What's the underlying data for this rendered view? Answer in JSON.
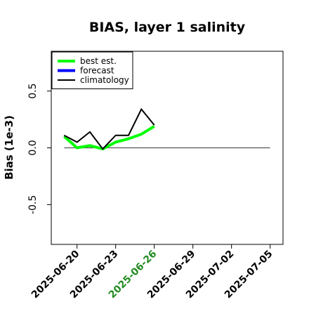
{
  "chart_data": {
    "type": "line",
    "title": "BIAS, layer 1 salinity",
    "xlabel": "",
    "ylabel": "Bias (1e-3)",
    "xlim": [
      "2025-06-18",
      "2025-07-06"
    ],
    "ylim": [
      -0.85,
      0.85
    ],
    "yticks": [
      -0.5,
      0.0,
      0.5
    ],
    "ytick_labels": [
      "-0.5",
      "0.0",
      "0.5"
    ],
    "xticks": [
      "2025-06-20",
      "2025-06-23",
      "2025-06-26",
      "2025-06-29",
      "2025-07-02",
      "2025-07-05"
    ],
    "xtick_colors": [
      "#000000",
      "#000000",
      "#228B22",
      "#000000",
      "#000000",
      "#000000"
    ],
    "zero_line": {
      "y": 0,
      "x_start": "2025-06-19",
      "x_end": "2025-07-05",
      "color": "#555555"
    },
    "grid": false,
    "legend_position": "top-left",
    "series": [
      {
        "name": "best est.",
        "color": "#00ff00",
        "width": 4,
        "x": [
          "2025-06-19",
          "2025-06-20",
          "2025-06-21",
          "2025-06-22",
          "2025-06-23",
          "2025-06-24",
          "2025-06-25",
          "2025-06-26"
        ],
        "y": [
          0.1,
          0.0,
          0.02,
          -0.01,
          0.05,
          0.08,
          0.12,
          0.19
        ]
      },
      {
        "name": "forecast",
        "color": "#0000ff",
        "width": 4,
        "x": [],
        "y": []
      },
      {
        "name": "climatology",
        "color": "#000000",
        "width": 2,
        "x": [
          "2025-06-19",
          "2025-06-20",
          "2025-06-21",
          "2025-06-22",
          "2025-06-23",
          "2025-06-24",
          "2025-06-25",
          "2025-06-26"
        ],
        "y": [
          0.11,
          0.05,
          0.14,
          -0.01,
          0.11,
          0.11,
          0.34,
          0.2
        ]
      }
    ]
  }
}
